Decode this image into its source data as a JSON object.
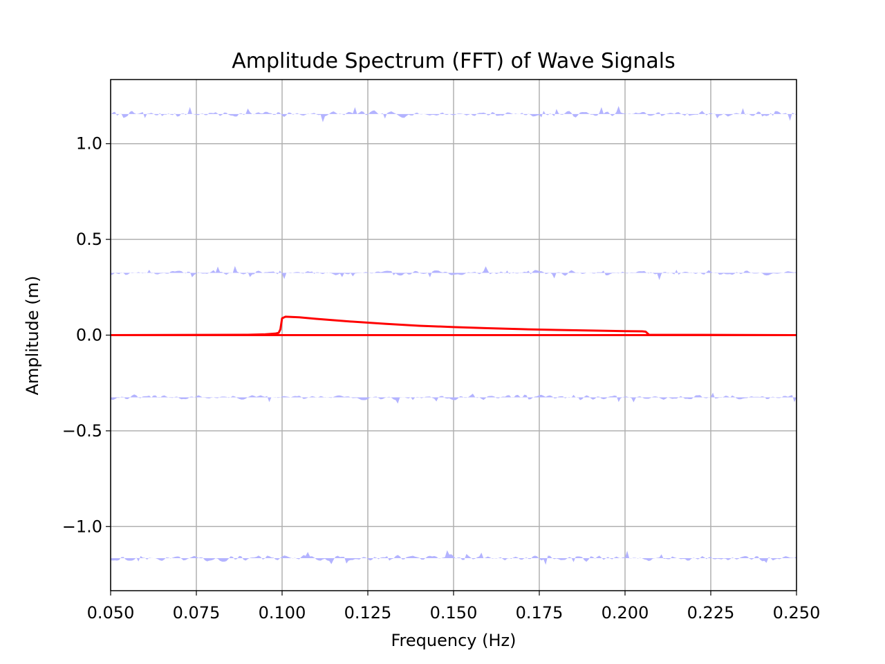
{
  "chart_data": {
    "type": "area",
    "title": "Amplitude Spectrum (FFT) of Wave Signals",
    "xlabel": "Frequency (Hz)",
    "ylabel": "Amplitude (m)",
    "xlim": [
      0.05,
      0.25
    ],
    "ylim": [
      -1.335,
      1.335
    ],
    "grid": true,
    "x_ticks": [
      0.05,
      0.075,
      0.1,
      0.125,
      0.15,
      0.175,
      0.2,
      0.225,
      0.25
    ],
    "x_tick_labels": [
      "0.050",
      "0.075",
      "0.100",
      "0.125",
      "0.150",
      "0.175",
      "0.200",
      "0.225",
      "0.250"
    ],
    "y_ticks": [
      -1.0,
      -0.5,
      0.0,
      0.5,
      1.0
    ],
    "y_tick_labels": [
      "−1.0",
      "−0.5",
      "0.0",
      "0.5",
      "1.0"
    ],
    "colors": {
      "line": "#ff0000",
      "band": "#b3b3ff",
      "grid": "#b0b0b0"
    },
    "bands": [
      {
        "baseline": 1.155,
        "amplitude": 0.022,
        "seed": 7
      },
      {
        "baseline": 0.325,
        "amplitude": 0.018,
        "seed": 19
      },
      {
        "baseline": -0.325,
        "amplitude": 0.018,
        "seed": 31
      },
      {
        "baseline": -1.165,
        "amplitude": 0.022,
        "seed": 43
      }
    ],
    "series": [
      {
        "x": [
          0.05,
          0.09,
          0.095,
          0.098,
          0.099,
          0.0995,
          0.1,
          0.101,
          0.105,
          0.11,
          0.12,
          0.13,
          0.14,
          0.15,
          0.16,
          0.17,
          0.18,
          0.19,
          0.2,
          0.205,
          0.206,
          0.207,
          0.25
        ],
        "y": [
          0.0,
          0.002,
          0.004,
          0.008,
          0.012,
          0.03,
          0.088,
          0.096,
          0.093,
          0.085,
          0.071,
          0.059,
          0.049,
          0.042,
          0.036,
          0.031,
          0.027,
          0.024,
          0.021,
          0.02,
          0.018,
          0.002,
          0.0
        ]
      },
      {
        "x": [
          0.05,
          0.25
        ],
        "y": [
          0.0,
          0.0
        ]
      }
    ]
  }
}
